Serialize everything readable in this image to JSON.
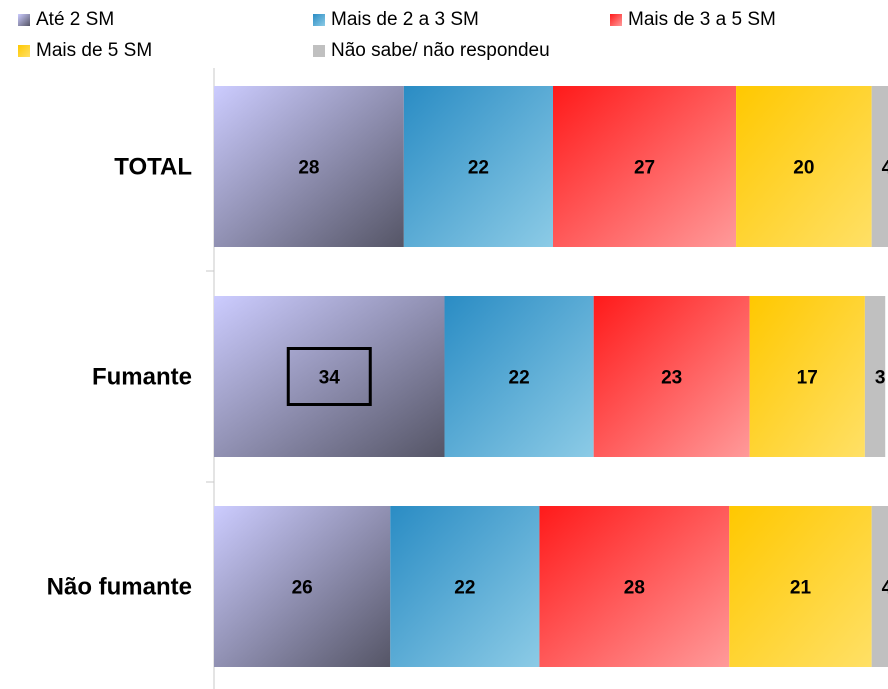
{
  "chart_data": {
    "type": "bar",
    "orientation": "horizontal",
    "stacked": true,
    "categories": [
      "TOTAL",
      "Fumante",
      "Não fumante"
    ],
    "series": [
      {
        "name": "Até 2 SM",
        "values": [
          28,
          34,
          26
        ],
        "color_light": "#ccccff",
        "color_dark": "#555566"
      },
      {
        "name": "Mais de 2 a 3 SM",
        "values": [
          22,
          22,
          22
        ],
        "color_light": "#2a8cc4",
        "color_dark": "#8ccbe6"
      },
      {
        "name": "Mais de 3 a 5 SM",
        "values": [
          27,
          23,
          28
        ],
        "color_light": "#ff1a1a",
        "color_dark": "#ff9a9a"
      },
      {
        "name": "Mais de 5 SM",
        "values": [
          20,
          17,
          21
        ],
        "color_light": "#ffc800",
        "color_dark": "#ffe066"
      },
      {
        "name": "Não sabe/ não respondeu",
        "values": [
          4,
          3,
          4
        ],
        "color_light": "#c0c0c0",
        "color_dark": "#c0c0c0"
      }
    ],
    "highlighted": {
      "category": "Fumante",
      "series": "Até 2 SM"
    },
    "legend_position": "top"
  }
}
